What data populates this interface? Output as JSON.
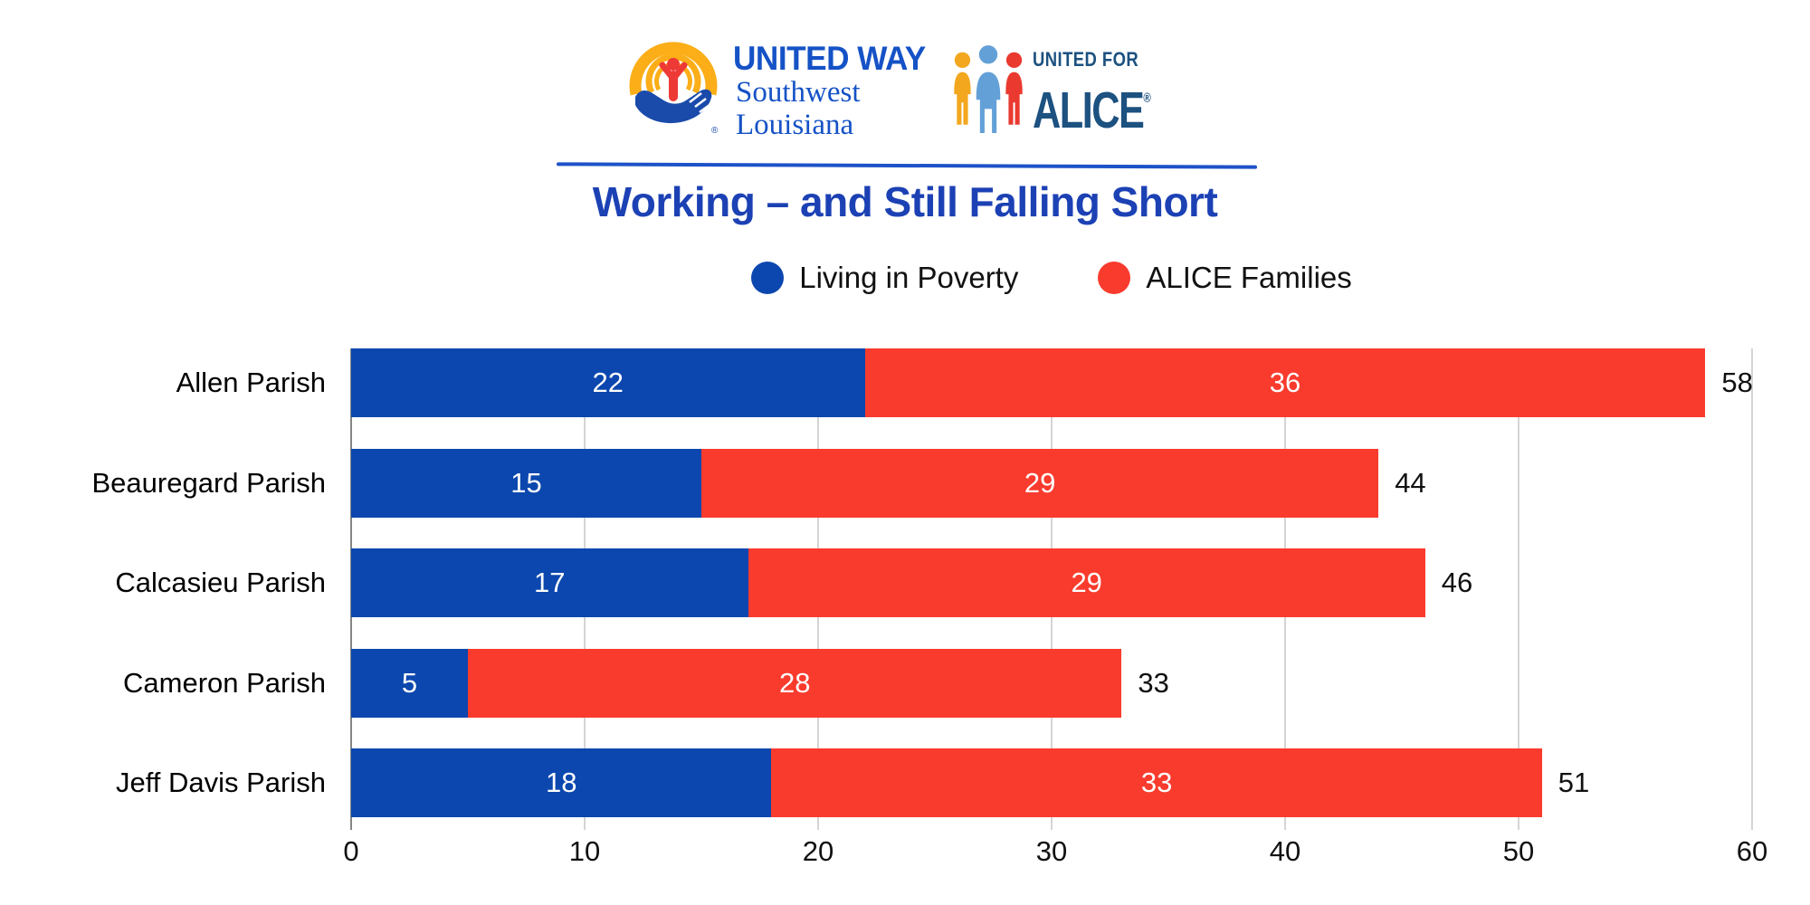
{
  "header": {
    "united_way": {
      "name": "UNITED WAY",
      "region_line1": "Southwest",
      "region_line2": "Louisiana",
      "registered": "®",
      "emblem_colors": {
        "arc_yellow": "#FBAE17",
        "person_red": "#EE3A36",
        "hand_blue": "#1A4BAB"
      }
    },
    "united_for_alice": {
      "tagline": "UNITED FOR",
      "name": "ALICE",
      "registered": "®",
      "icon_colors": {
        "left_person": "#F2A71E",
        "center_person": "#64A0D8",
        "right_person": "#EA3A30",
        "text_navy": "#1C5180"
      }
    }
  },
  "title": "Working – and Still Falling Short",
  "legend": [
    {
      "label": "Living in Poverty",
      "color": "#0B47AE"
    },
    {
      "label": "ALICE Families",
      "color": "#F93B2D"
    }
  ],
  "chart_data": {
    "type": "bar",
    "orientation": "horizontal",
    "stacked": true,
    "title": "Working – and Still Falling Short",
    "categories": [
      "Allen Parish",
      "Beauregard Parish",
      "Calcasieu Parish",
      "Cameron Parish",
      "Jeff Davis Parish"
    ],
    "series": [
      {
        "name": "Living in Poverty",
        "color": "#0B47AE",
        "values": [
          22,
          15,
          17,
          5,
          18
        ]
      },
      {
        "name": "ALICE Families",
        "color": "#F93B2D",
        "values": [
          36,
          29,
          29,
          28,
          33
        ]
      }
    ],
    "totals": [
      58,
      44,
      46,
      33,
      51
    ],
    "x_ticks": [
      0,
      10,
      20,
      30,
      40,
      50,
      60
    ],
    "xlim": [
      0,
      60
    ],
    "grid": true,
    "gridline_color": "#d4d4d4",
    "value_label_style": "white-inside-segment",
    "total_label_style": "black-right-of-bar"
  }
}
